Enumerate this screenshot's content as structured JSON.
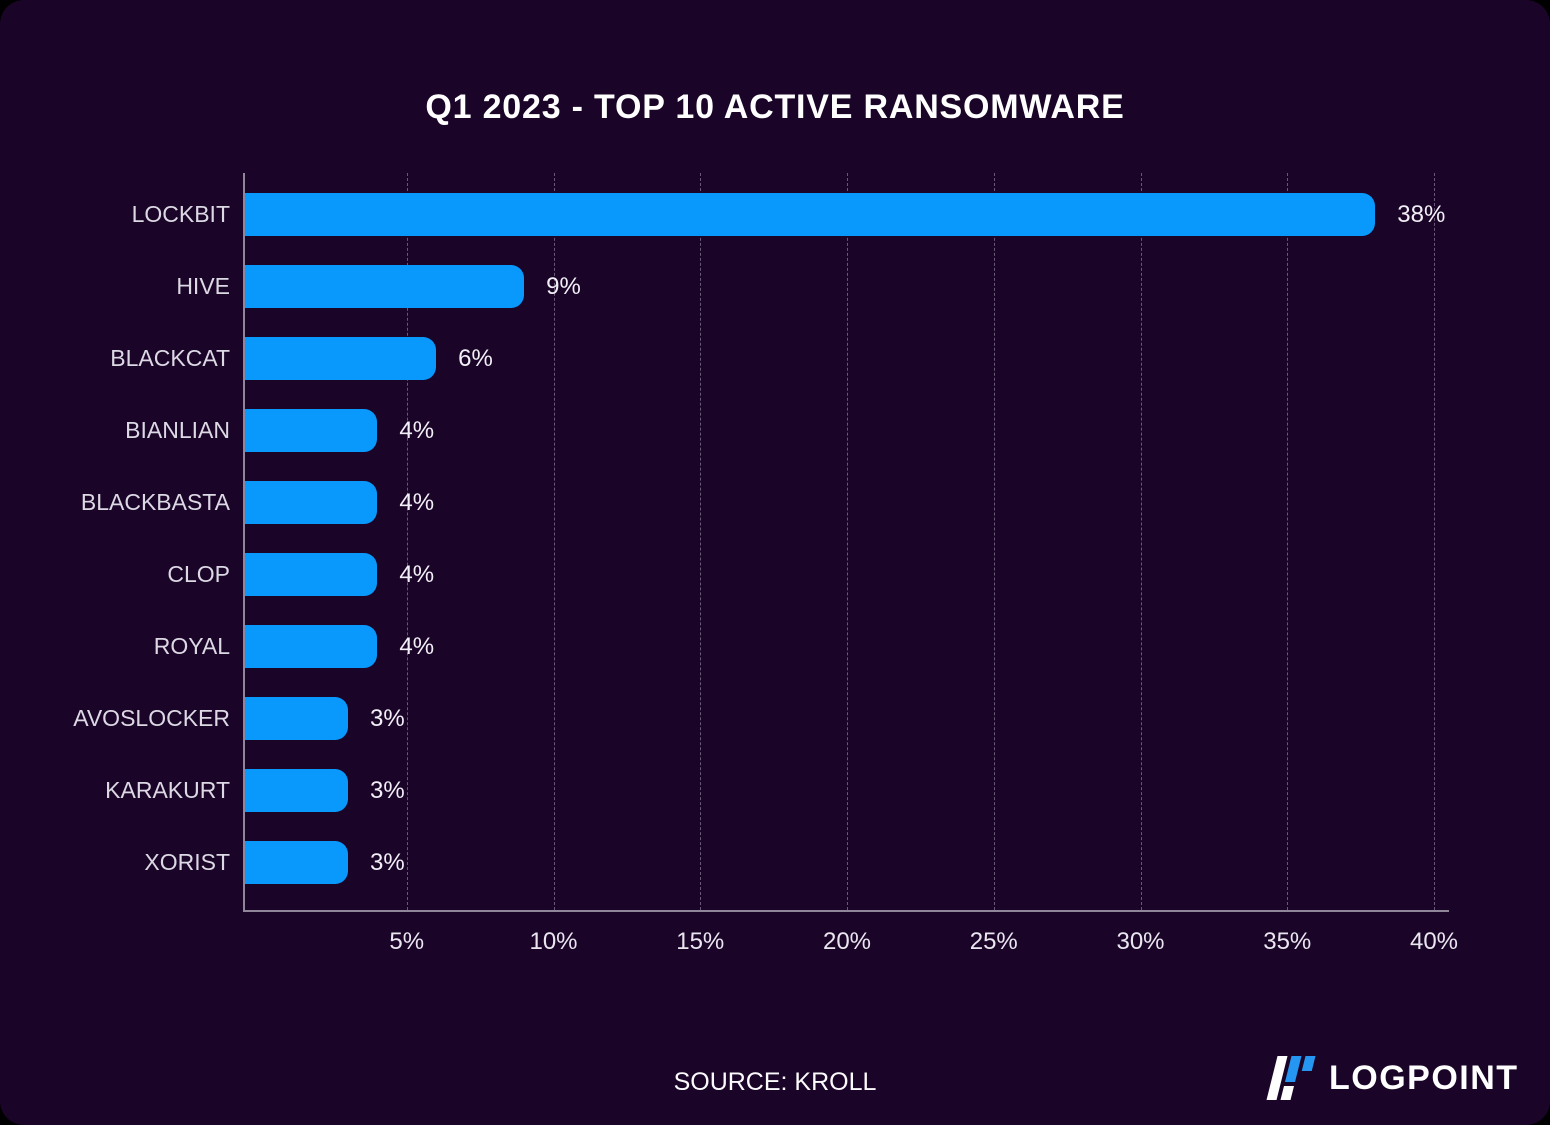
{
  "page": {
    "background": "#000000",
    "card_background": "#1a0529",
    "axis_color": "#8f8799",
    "gridline_color": "rgba(214,208,226,0.42)"
  },
  "chart_data": {
    "type": "bar",
    "orientation": "horizontal",
    "title": "Q1 2023 - TOP 10 ACTIVE RANSOMWARE",
    "categories": [
      "LOCKBIT",
      "HIVE",
      "BLACKCAT",
      "BIANLIAN",
      "BLACKBASTA",
      "CLOP",
      "ROYAL",
      "AVOSLOCKER",
      "KARAKURT",
      "XORIST"
    ],
    "values": [
      38,
      9,
      6,
      4,
      4,
      4,
      4,
      3,
      3,
      3
    ],
    "value_labels": [
      "38%",
      "9%",
      "6%",
      "4%",
      "4%",
      "4%",
      "4%",
      "3%",
      "3%",
      "3%"
    ],
    "x_ticks": [
      "5%",
      "10%",
      "15%",
      "20%",
      "25%",
      "30%",
      "35%",
      "40%"
    ],
    "x_tick_values": [
      5,
      10,
      15,
      20,
      25,
      30,
      35,
      40
    ],
    "xlim": [
      0,
      40
    ],
    "xlabel": "",
    "ylabel": "",
    "grid": "dashed-vertical",
    "legend": "none",
    "bar_color": "#0999fc"
  },
  "footer": {
    "source": "SOURCE: KROLL"
  },
  "brand": {
    "name": "LOGPOINT",
    "logo_blue": "#2596f2",
    "logo_white": "#ffffff"
  }
}
